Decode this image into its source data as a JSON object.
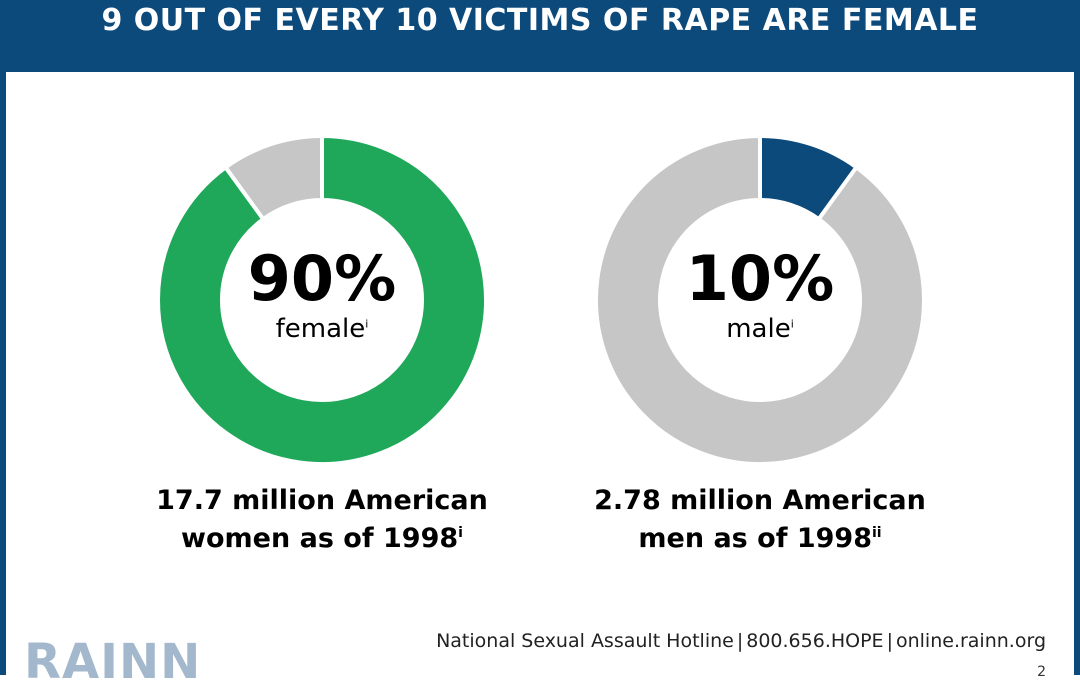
{
  "header": {
    "title": "9 OUT OF EVERY 10 VICTIMS OF RAPE ARE FEMALE"
  },
  "colors": {
    "header_bg": "#0d4a7c",
    "female": "#1fa85a",
    "male": "#0d4a7c",
    "remainder": "#c6c6c6"
  },
  "chart_data": [
    {
      "type": "pie",
      "variant": "donut",
      "slices": [
        {
          "label": "female",
          "value": 90,
          "color": "#1fa85a"
        },
        {
          "label": "",
          "value": 10,
          "color": "#c6c6c6"
        }
      ],
      "center_value": "90%",
      "center_label": "female",
      "center_note": "i",
      "caption_line1": "17.7 million American",
      "caption_line2": "women as of 1998",
      "caption_note": "i"
    },
    {
      "type": "pie",
      "variant": "donut",
      "slices": [
        {
          "label": "male",
          "value": 10,
          "color": "#0d4a7c"
        },
        {
          "label": "",
          "value": 90,
          "color": "#c6c6c6"
        }
      ],
      "center_value": "10%",
      "center_label": "male",
      "center_note": "i",
      "caption_line1": "2.78 million American",
      "caption_line2": "men as of 1998",
      "caption_note": "ii"
    }
  ],
  "footer": {
    "hotline": "National Sexual Assault Hotline",
    "phone": "800.656.HOPE",
    "site": "online.rainn.org",
    "separator": "|",
    "page": "2"
  },
  "logo": {
    "text": "RAINN"
  }
}
